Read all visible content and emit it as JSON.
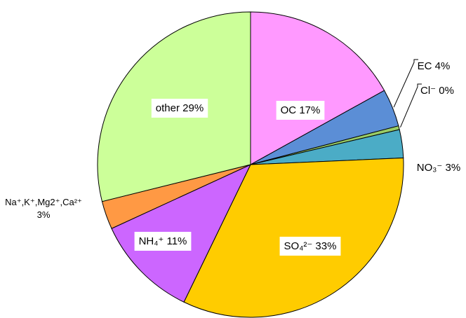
{
  "chart_data": {
    "type": "pie",
    "categories": [
      "OC",
      "EC",
      "Cl⁻",
      "NO₃⁻",
      "SO₄²⁻",
      "NH₄⁺",
      "Na⁺,K⁺,Mg2⁺,Ca²⁺",
      "other"
    ],
    "values": [
      17,
      4,
      0.4,
      3,
      33,
      11,
      3,
      29
    ],
    "value_labels": [
      "17%",
      "4%",
      "0%",
      "3%",
      "33%",
      "11%",
      "3%",
      "29%"
    ],
    "colors": [
      "#ff99ff",
      "#5b8ed6",
      "#99cc66",
      "#4bacc6",
      "#ffcc00",
      "#cc66ff",
      "#ff9944",
      "#ccff99"
    ]
  }
}
